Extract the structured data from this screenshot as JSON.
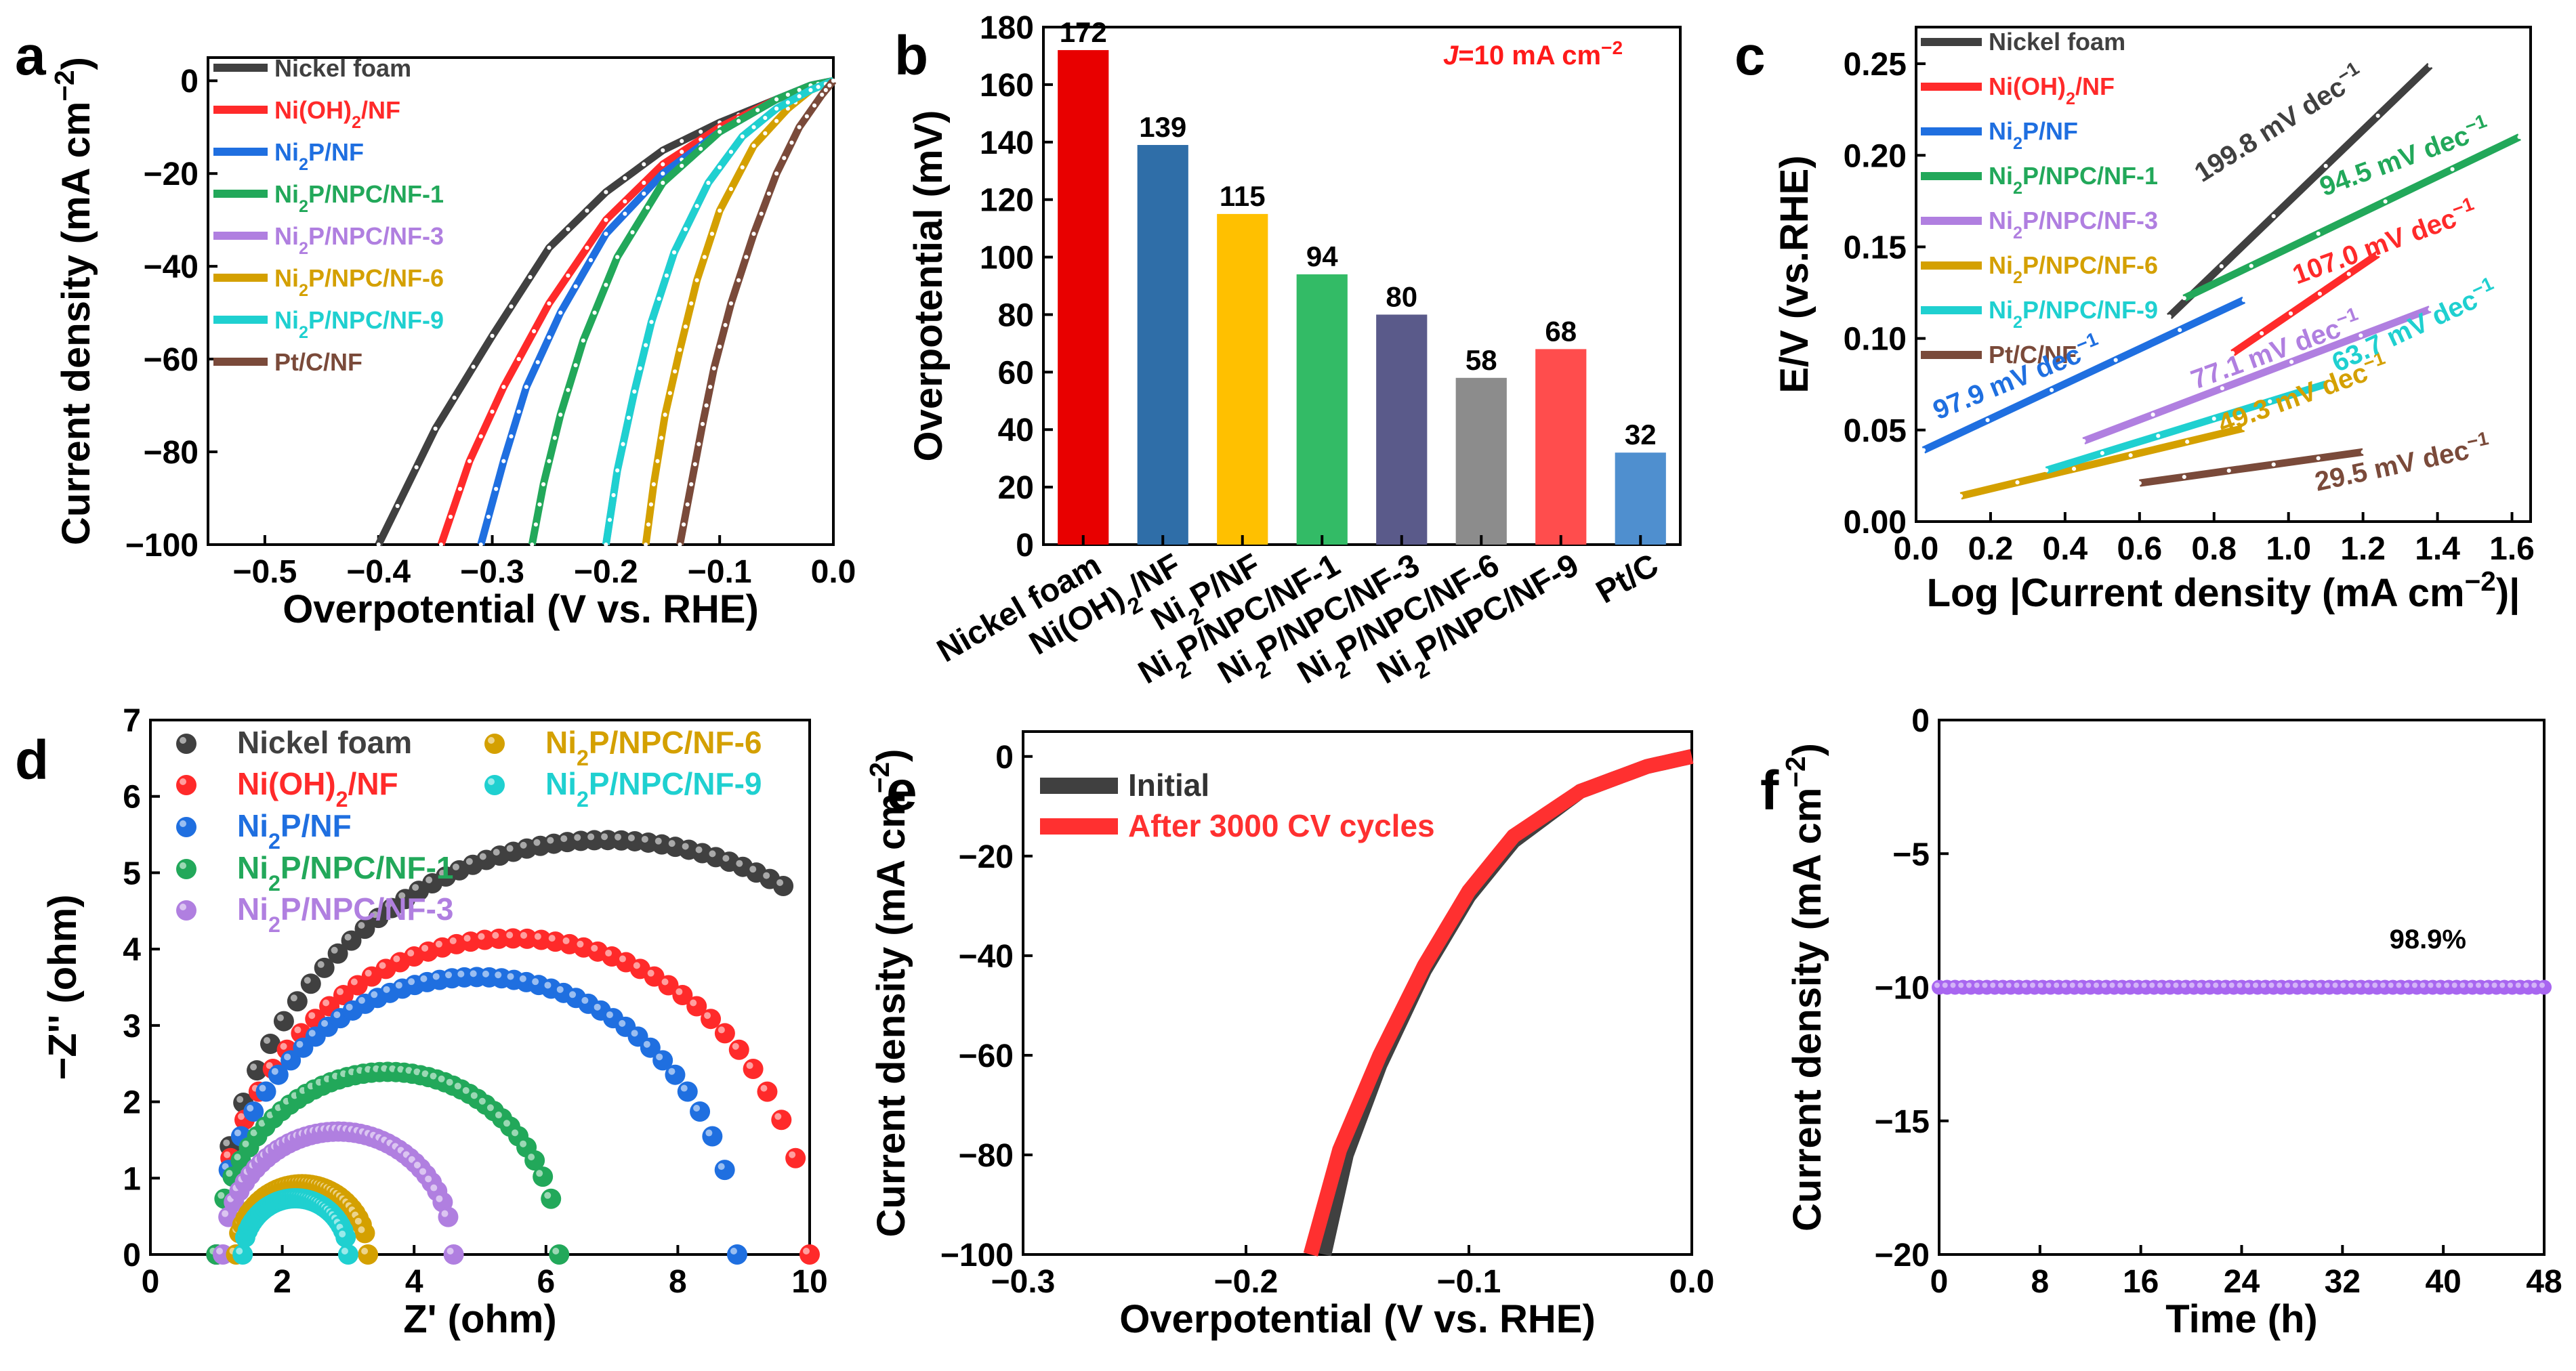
{
  "figure": {
    "panels": [
      "a",
      "b",
      "c",
      "d",
      "e",
      "f"
    ]
  },
  "chart_data": [
    {
      "id": "a",
      "type": "line",
      "title": "",
      "xlabel": "Overpotential (V vs. RHE)",
      "ylabel": "Current density (mA cm⁻²)",
      "xlim": [
        -0.55,
        0.0
      ],
      "ylim": [
        -100,
        5
      ],
      "xticks": [
        -0.5,
        -0.4,
        -0.3,
        -0.2,
        -0.1,
        0.0
      ],
      "xtick_labels": [
        "−0.5",
        "−0.4",
        "−0.3",
        "−0.2",
        "−0.1",
        "0.0"
      ],
      "yticks": [
        0,
        -20,
        -40,
        -60,
        -80,
        -100
      ],
      "ytick_labels": [
        "0",
        "−20",
        "−40",
        "−60",
        "−80",
        "−100"
      ],
      "legend": "top-left",
      "series": [
        {
          "name": "Nickel foam",
          "color": "#404040",
          "x": [
            0.0,
            -0.02,
            -0.05,
            -0.1,
            -0.15,
            -0.2,
            -0.25,
            -0.3,
            -0.35,
            -0.4
          ],
          "y": [
            0,
            -1,
            -4,
            -9,
            -15,
            -24,
            -36,
            -55,
            -75,
            -100
          ]
        },
        {
          "name": "Ni(OH)₂/NF",
          "color": "#ff2a2a",
          "x": [
            0.0,
            -0.02,
            -0.05,
            -0.1,
            -0.15,
            -0.2,
            -0.25,
            -0.29,
            -0.32,
            -0.345
          ],
          "y": [
            0,
            -1,
            -4,
            -10,
            -18,
            -30,
            -48,
            -66,
            -82,
            -100
          ]
        },
        {
          "name": "Ni₂P/NF",
          "color": "#1f6fe0",
          "x": [
            0.0,
            -0.02,
            -0.05,
            -0.1,
            -0.15,
            -0.2,
            -0.24,
            -0.27,
            -0.29,
            -0.31
          ],
          "y": [
            0,
            -1,
            -4,
            -11,
            -20,
            -33,
            -50,
            -66,
            -82,
            -100
          ]
        },
        {
          "name": "Ni₂P/NPC/NF-1",
          "color": "#22a85a",
          "x": [
            0.0,
            -0.02,
            -0.05,
            -0.1,
            -0.15,
            -0.19,
            -0.22,
            -0.24,
            -0.255,
            -0.265
          ],
          "y": [
            0,
            -1,
            -4,
            -11,
            -22,
            -38,
            -56,
            -72,
            -87,
            -100
          ]
        },
        {
          "name": "Ni₂P/NPC/NF-3",
          "color": "#b07fe0",
          "x": [
            0.0,
            -0.02,
            -0.05,
            -0.08,
            -0.11,
            -0.14,
            -0.16,
            -0.175,
            -0.19,
            -0.2
          ],
          "y": [
            0,
            -2,
            -6,
            -12,
            -22,
            -37,
            -52,
            -67,
            -84,
            -100
          ]
        },
        {
          "name": "Ni₂P/NPC/NF-6",
          "color": "#d4a000",
          "x": [
            0.0,
            -0.02,
            -0.04,
            -0.07,
            -0.1,
            -0.12,
            -0.135,
            -0.148,
            -0.158,
            -0.165
          ],
          "y": [
            0,
            -2,
            -6,
            -14,
            -28,
            -43,
            -58,
            -72,
            -87,
            -100
          ]
        },
        {
          "name": "Ni₂P/NPC/NF-9",
          "color": "#1fd0d0",
          "x": [
            0.0,
            -0.02,
            -0.05,
            -0.08,
            -0.11,
            -0.14,
            -0.16,
            -0.175,
            -0.19,
            -0.2
          ],
          "y": [
            0,
            -2,
            -6,
            -12,
            -22,
            -37,
            -52,
            -67,
            -84,
            -100
          ]
        },
        {
          "name": "Pt/C/NF",
          "color": "#7a4a3a",
          "x": [
            0.0,
            -0.01,
            -0.03,
            -0.05,
            -0.07,
            -0.09,
            -0.105,
            -0.115,
            -0.125,
            -0.135
          ],
          "y": [
            0,
            -3,
            -10,
            -20,
            -33,
            -48,
            -62,
            -74,
            -87,
            -100
          ]
        }
      ]
    },
    {
      "id": "b",
      "type": "bar",
      "title": "",
      "annotation": "J=10 mA cm⁻²",
      "xlabel": "",
      "ylabel": "Overpotential (mV)",
      "ylim": [
        0,
        180
      ],
      "yticks": [
        0,
        20,
        40,
        60,
        80,
        100,
        120,
        140,
        160,
        180
      ],
      "categories": [
        "Nickel foam",
        "Ni(OH)₂/NF",
        "Ni₂P/NF",
        "Ni₂P/NPC/NF-1",
        "Ni₂P/NPC/NF-3",
        "Ni₂P/NPC/NF-6",
        "Ni₂P/NPC/NF-9",
        "Pt/C"
      ],
      "values": [
        172,
        139,
        115,
        94,
        80,
        58,
        68,
        32
      ],
      "value_labels": [
        "172",
        "139",
        "115",
        "94",
        "80",
        "58",
        "68",
        "32"
      ],
      "colors": [
        "#e80000",
        "#2f6ea8",
        "#ffc000",
        "#33bb66",
        "#5a5a8a",
        "#8c8c8c",
        "#ff4d4d",
        "#4f8fcf"
      ]
    },
    {
      "id": "c",
      "type": "line",
      "title": "",
      "xlabel": "Log |Current density (mA cm⁻²)|",
      "ylabel": "E/V (vs.RHE)",
      "xlim": [
        0.0,
        1.65
      ],
      "ylim": [
        0.0,
        0.27
      ],
      "xticks": [
        0.0,
        0.2,
        0.4,
        0.6,
        0.8,
        1.0,
        1.2,
        1.4,
        1.6
      ],
      "xtick_labels": [
        "0.0",
        "0.2",
        "0.4",
        "0.6",
        "0.8",
        "1.0",
        "1.2",
        "1.4",
        "1.6"
      ],
      "yticks": [
        0.0,
        0.05,
        0.1,
        0.15,
        0.2,
        0.25
      ],
      "ytick_labels": [
        "0.00",
        "0.05",
        "0.10",
        "0.15",
        "0.20",
        "0.25"
      ],
      "legend": "top-left",
      "series": [
        {
          "name": "Nickel foam",
          "color": "#404040",
          "x": [
            0.68,
            1.38
          ],
          "y": [
            0.112,
            0.249
          ],
          "slope_label": "199.8 mV dec⁻¹"
        },
        {
          "name": "Ni(OH)₂/NF",
          "color": "#ff2a2a",
          "x": [
            0.85,
            1.24
          ],
          "y": [
            0.092,
            0.146
          ],
          "slope_label": "107.0 mV dec⁻¹"
        },
        {
          "name": "Ni₂P/NF",
          "color": "#1f6fe0",
          "x": [
            0.02,
            0.88
          ],
          "y": [
            0.039,
            0.121
          ],
          "slope_label": "97.9 mV dec⁻¹"
        },
        {
          "name": "Ni₂P/NPC/NF-1",
          "color": "#22a85a",
          "x": [
            0.72,
            1.62
          ],
          "y": [
            0.122,
            0.21
          ],
          "slope_label": "94.5 mV dec⁻¹"
        },
        {
          "name": "Ni₂P/NPC/NF-3",
          "color": "#b07fe0",
          "x": [
            0.45,
            1.38
          ],
          "y": [
            0.044,
            0.116
          ],
          "slope_label": "77.1 mV dec⁻¹"
        },
        {
          "name": "Ni₂P/NPC/NF-6",
          "color": "#d4a000",
          "x": [
            0.12,
            0.88
          ],
          "y": [
            0.014,
            0.051
          ],
          "slope_label": "49.3 mV dec⁻¹"
        },
        {
          "name": "Ni₂P/NPC/NF-9",
          "color": "#1fd0d0",
          "x": [
            0.35,
            1.1
          ],
          "y": [
            0.028,
            0.075
          ],
          "slope_label": "63.7 mV dec⁻¹"
        },
        {
          "name": "Pt/C/NF",
          "color": "#7a4a3a",
          "x": [
            0.6,
            1.2
          ],
          "y": [
            0.021,
            0.038
          ],
          "slope_label": "29.5 mV dec⁻¹"
        }
      ]
    },
    {
      "id": "d",
      "type": "scatter",
      "title": "",
      "xlabel": "Z' (ohm)",
      "ylabel": "−Z'' (ohm)",
      "xlim": [
        0,
        10
      ],
      "ylim": [
        0,
        7
      ],
      "xticks": [
        0,
        2,
        4,
        6,
        8,
        10
      ],
      "xtick_labels": [
        "0",
        "2",
        "4",
        "6",
        "8",
        "10"
      ],
      "yticks": [
        0,
        1,
        2,
        3,
        4,
        5,
        6,
        7
      ],
      "ytick_labels": [
        "0",
        "1",
        "2",
        "3",
        "4",
        "5",
        "6",
        "7"
      ],
      "legend": "top",
      "series": [
        {
          "name": "Nickel foam",
          "color": "#404040",
          "center": 6.9,
          "radius": 5.9,
          "x_end": 9.6
        },
        {
          "name": "Ni(OH)₂/NF",
          "color": "#ff2a2a",
          "center": 5.5,
          "radius": 4.5,
          "x_end": 10.0
        },
        {
          "name": "Ni₂P/NF",
          "color": "#1f6fe0",
          "center": 4.95,
          "radius": 3.95,
          "x_end": 8.9
        },
        {
          "name": "Ni₂P/NPC/NF-1",
          "color": "#22a85a",
          "center": 3.6,
          "radius": 2.6,
          "x_end": 6.2
        },
        {
          "name": "Ni₂P/NPC/NF-3",
          "color": "#b07fe0",
          "center": 2.85,
          "radius": 1.75,
          "x_end": 4.6
        },
        {
          "name": "Ni₂P/NPC/NF-6",
          "color": "#d4a000",
          "center": 2.3,
          "radius": 1.0,
          "x_end": 3.3
        },
        {
          "name": "Ni₂P/NPC/NF-9",
          "color": "#1fd0d0",
          "center": 2.2,
          "radius": 0.8,
          "x_end": 3.0
        }
      ]
    },
    {
      "id": "e",
      "type": "line",
      "title": "",
      "xlabel": "Overpotential (V vs. RHE)",
      "ylabel": "Current density (mA cm⁻²)",
      "xlim": [
        -0.3,
        0.0
      ],
      "ylim": [
        -100,
        5
      ],
      "xticks": [
        -0.3,
        -0.2,
        -0.1,
        0.0
      ],
      "xtick_labels": [
        "−0.3",
        "−0.2",
        "−0.1",
        "0.0"
      ],
      "yticks": [
        0,
        -20,
        -40,
        -60,
        -80,
        -100
      ],
      "ytick_labels": [
        "0",
        "−20",
        "−40",
        "−60",
        "−80",
        "−100"
      ],
      "legend": "top-left",
      "series": [
        {
          "name": "Initial",
          "color": "#404040",
          "x": [
            0.0,
            -0.02,
            -0.05,
            -0.08,
            -0.1,
            -0.12,
            -0.14,
            -0.155,
            -0.165
          ],
          "y": [
            0,
            -2,
            -7,
            -17,
            -28,
            -43,
            -62,
            -80,
            -100
          ]
        },
        {
          "name": "After 3000 CV cycles",
          "color": "#ff3030",
          "x": [
            0.0,
            -0.02,
            -0.05,
            -0.08,
            -0.1,
            -0.12,
            -0.14,
            -0.158,
            -0.171
          ],
          "y": [
            0,
            -2,
            -7,
            -16,
            -27,
            -42,
            -60,
            -79,
            -100
          ]
        }
      ]
    },
    {
      "id": "f",
      "type": "scatter",
      "title": "",
      "annotation": "98.9%",
      "xlabel": "Time (h)",
      "ylabel": "Current density (mA cm⁻²)",
      "xlim": [
        0,
        48
      ],
      "ylim": [
        -20,
        0
      ],
      "xticks": [
        0,
        8,
        16,
        24,
        32,
        40,
        48
      ],
      "xtick_labels": [
        "0",
        "8",
        "16",
        "24",
        "32",
        "40",
        "48"
      ],
      "yticks": [
        0,
        -5,
        -10,
        -15,
        -20
      ],
      "ytick_labels": [
        "0",
        "−5",
        "−10",
        "−15",
        "−20"
      ],
      "series": [
        {
          "name": "Ni₂P/NPC/NF-3",
          "color": "#a866f0",
          "x_start": 0,
          "x_end": 48,
          "y": -10.0
        }
      ]
    }
  ]
}
